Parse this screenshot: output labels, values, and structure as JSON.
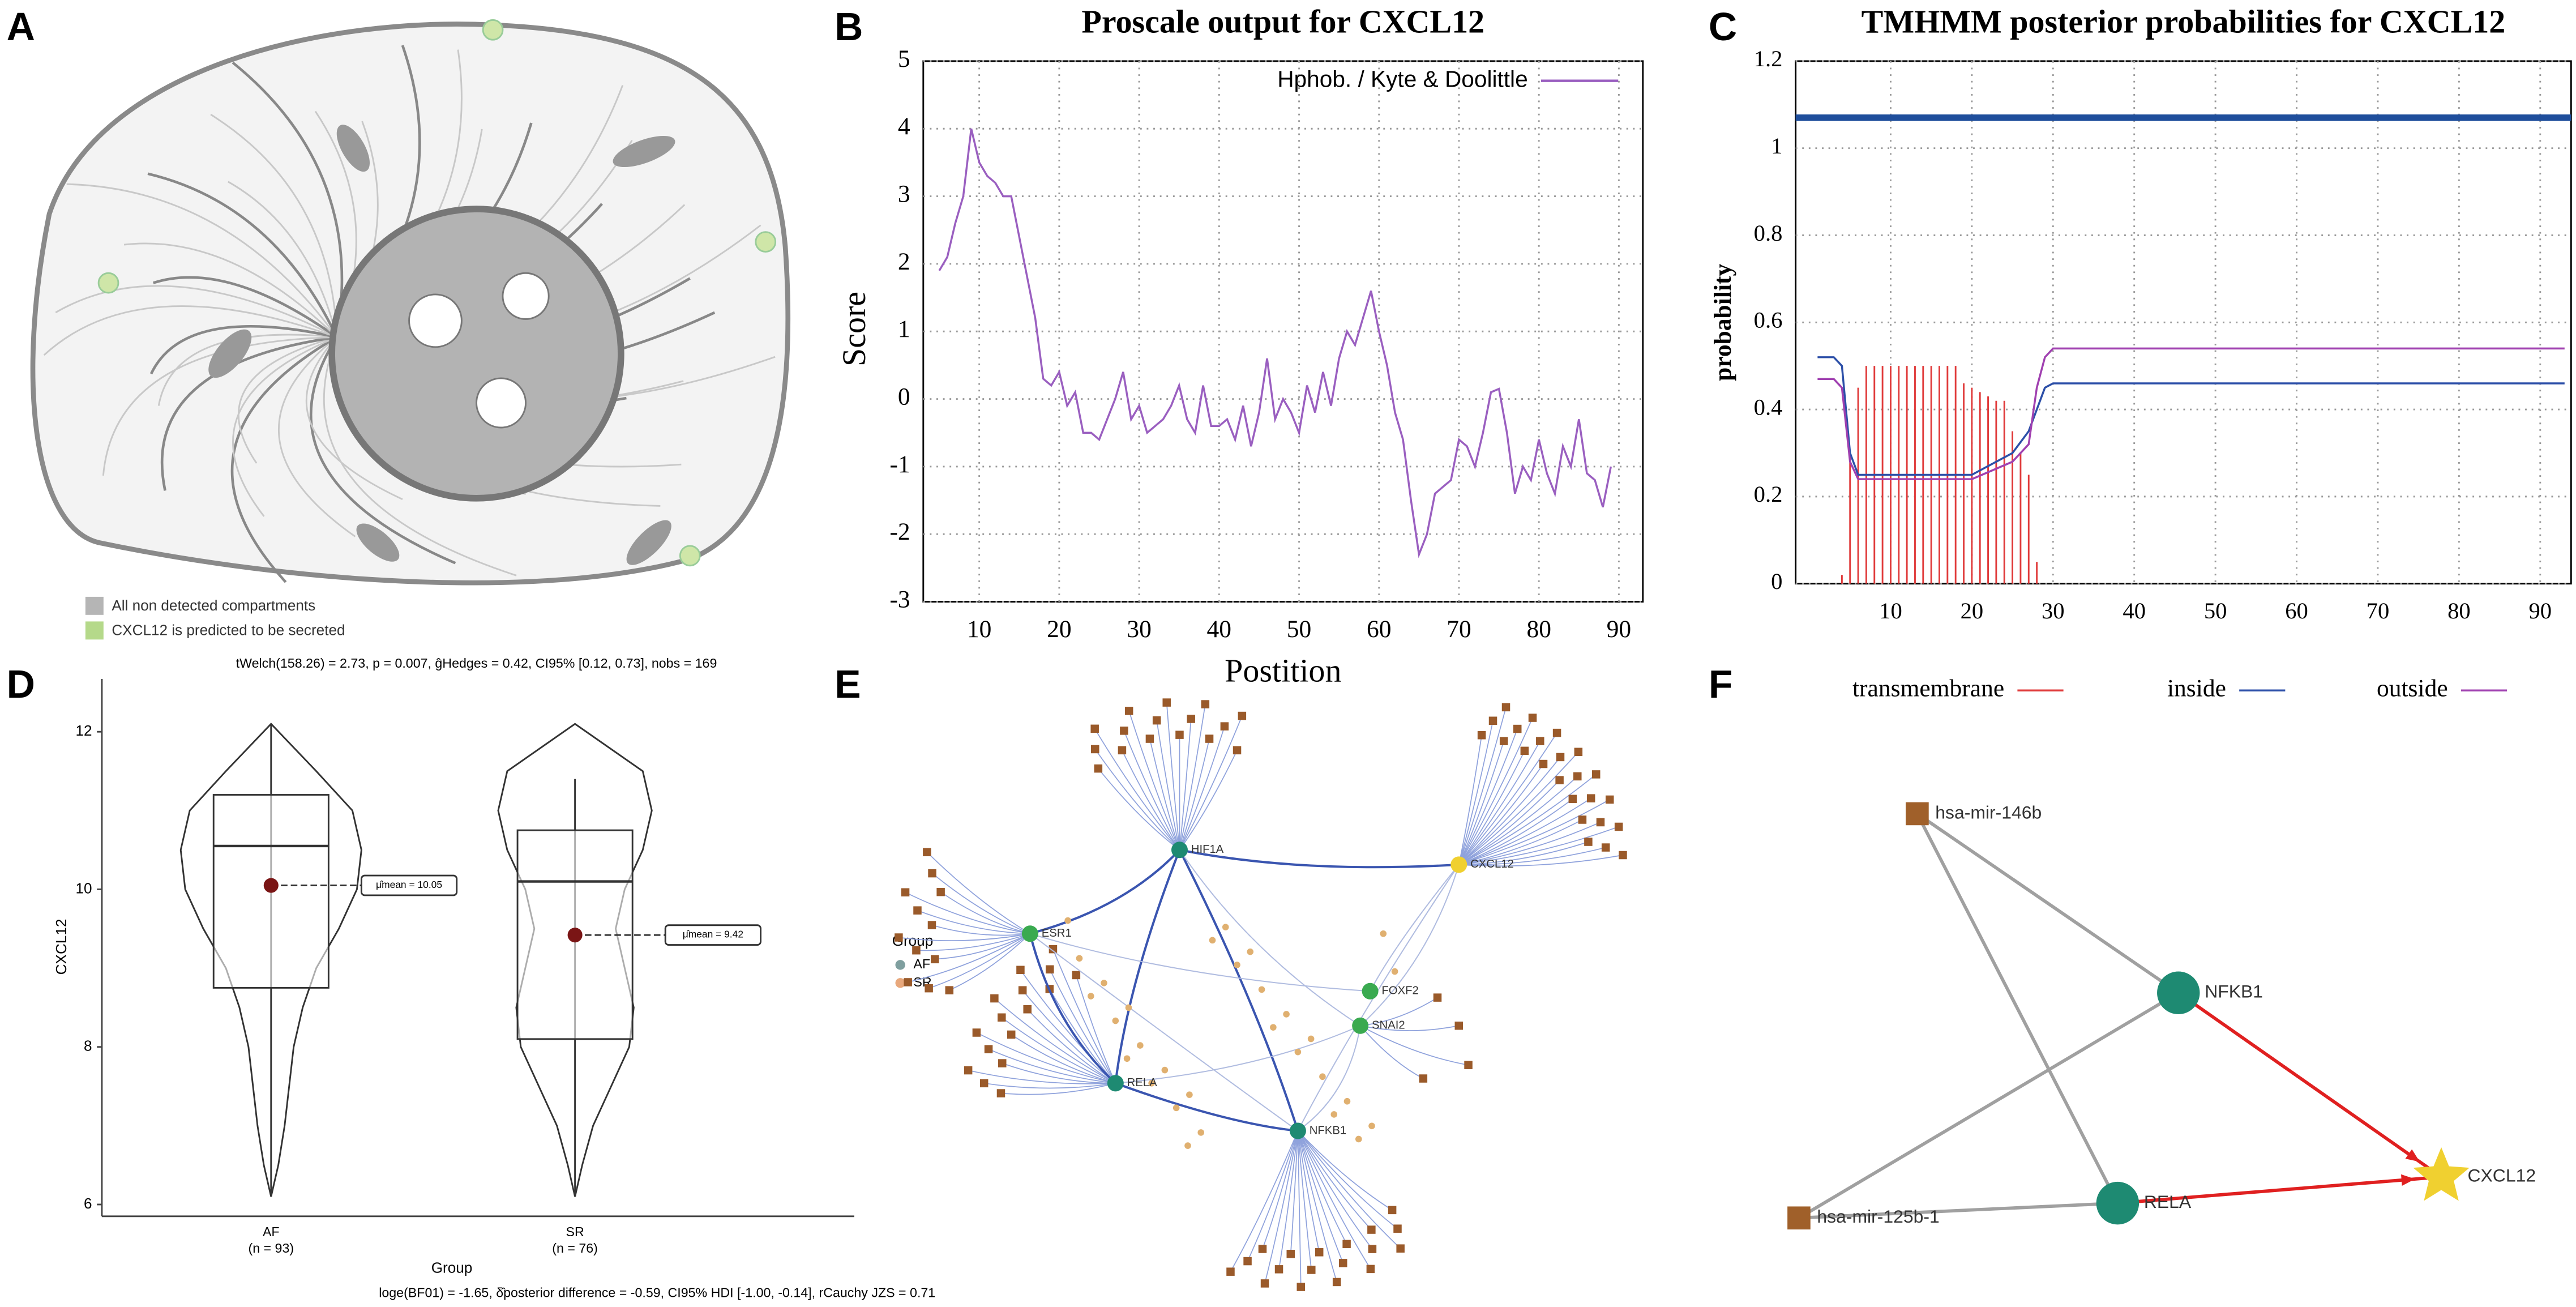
{
  "panel_labels": [
    "A",
    "B",
    "C",
    "D",
    "E",
    "F"
  ],
  "cell_legend": [
    "All non detected compartments",
    "CXCL12 is predicted to be secreted"
  ],
  "chart_data": [
    {
      "type": "line",
      "title": "Proscale output for CXCL12",
      "x_label": "Postition",
      "y_label": "Score",
      "x": [
        5,
        6,
        7,
        8,
        9,
        10,
        11,
        12,
        13,
        14,
        15,
        16,
        17,
        18,
        19,
        20,
        21,
        22,
        23,
        24,
        25,
        26,
        27,
        28,
        29,
        30,
        31,
        32,
        33,
        34,
        35,
        36,
        37,
        38,
        39,
        40,
        41,
        42,
        43,
        44,
        45,
        46,
        47,
        48,
        49,
        50,
        51,
        52,
        53,
        54,
        55,
        56,
        57,
        58,
        59,
        60,
        61,
        62,
        63,
        64,
        65,
        66,
        67,
        68,
        69,
        70,
        71,
        72,
        73,
        74,
        75,
        76,
        77,
        78,
        79,
        80,
        81,
        82,
        83,
        84,
        85,
        86,
        87,
        88,
        89
      ],
      "series": [
        {
          "name": "Hphob. / Kyte & Doolittle",
          "color": "#9a5fc0",
          "values": [
            1.9,
            2.1,
            2.6,
            3.0,
            4.0,
            3.5,
            3.3,
            3.2,
            3.0,
            3.0,
            2.4,
            1.8,
            1.2,
            0.3,
            0.2,
            0.4,
            -0.1,
            0.1,
            -0.5,
            -0.5,
            -0.6,
            -0.3,
            0.0,
            0.4,
            -0.3,
            -0.1,
            -0.5,
            -0.4,
            -0.3,
            -0.1,
            0.2,
            -0.3,
            -0.5,
            0.2,
            -0.4,
            -0.4,
            -0.3,
            -0.6,
            -0.1,
            -0.7,
            -0.2,
            0.6,
            -0.3,
            0.0,
            -0.2,
            -0.5,
            0.2,
            -0.2,
            0.4,
            -0.1,
            0.6,
            1.0,
            0.8,
            1.2,
            1.6,
            1.0,
            0.5,
            -0.2,
            -0.6,
            -1.5,
            -2.3,
            -2.0,
            -1.4,
            -1.3,
            -1.2,
            -0.6,
            -0.7,
            -1.0,
            -0.5,
            0.1,
            0.15,
            -0.5,
            -1.4,
            -1.0,
            -1.2,
            -0.6,
            -1.1,
            -1.4,
            -0.7,
            -1.0,
            -0.3,
            -1.1,
            -1.2,
            -1.6,
            -1.0
          ]
        }
      ],
      "xlim": [
        3,
        93
      ],
      "ylim": [
        -3,
        5
      ],
      "xticks": [
        10,
        20,
        30,
        40,
        50,
        60,
        70,
        80,
        90
      ],
      "yticks": [
        -3,
        -2,
        -1,
        0,
        1,
        2,
        3,
        4,
        5
      ],
      "grid": true,
      "legend": "upper right"
    },
    {
      "type": "line",
      "title": "TMHMM posterior probabilities for CXCL12",
      "y_label": "probability",
      "series": [
        {
          "name": "transmembrane",
          "color": "#e03a3a",
          "mark": "bars",
          "x": [
            4,
            5,
            6,
            7,
            8,
            9,
            10,
            11,
            12,
            13,
            14,
            15,
            16,
            17,
            18,
            19,
            20,
            21,
            22,
            23,
            24,
            25,
            26,
            27,
            28
          ],
          "values": [
            0.02,
            0.3,
            0.45,
            0.5,
            0.5,
            0.5,
            0.5,
            0.5,
            0.5,
            0.5,
            0.5,
            0.5,
            0.5,
            0.5,
            0.5,
            0.46,
            0.45,
            0.44,
            0.43,
            0.42,
            0.42,
            0.35,
            0.3,
            0.25,
            0.05
          ]
        },
        {
          "name": "inside",
          "color": "#2c4fa8",
          "mark": "line",
          "x": [
            1,
            3,
            4,
            5,
            6,
            20,
            25,
            27,
            28,
            29,
            30,
            93
          ],
          "values": [
            0.52,
            0.52,
            0.5,
            0.3,
            0.25,
            0.25,
            0.3,
            0.35,
            0.4,
            0.45,
            0.46,
            0.46
          ]
        },
        {
          "name": "outside",
          "color": "#a040b0",
          "mark": "line",
          "x": [
            1,
            3,
            4,
            5,
            6,
            20,
            25,
            27,
            28,
            29,
            30,
            93
          ],
          "values": [
            0.47,
            0.47,
            0.45,
            0.28,
            0.24,
            0.24,
            0.28,
            0.32,
            0.45,
            0.52,
            0.54,
            0.54
          ]
        }
      ],
      "topology": {
        "level": 1.07,
        "color": "#1f4e9c"
      },
      "xlim": [
        -1.7,
        93.8
      ],
      "ylim": [
        0,
        1.2
      ],
      "xticks": [
        10,
        20,
        30,
        40,
        50,
        60,
        70,
        80,
        90
      ],
      "yticks": [
        0,
        0.2,
        0.4,
        0.6,
        0.8,
        1,
        1.2
      ],
      "grid": true,
      "legend": "bottom"
    },
    {
      "type": "violin",
      "title": "tWelch(158.26) = 2.73, p = 0.007, ĝHedges = 0.42, CI95% [0.12, 0.73], nobs = 169",
      "footnote": "loge(BF01) = -1.65, δ̂posterior difference = -0.59, CI95% HDI [-1.00, -0.14], rCauchy JZS = 0.71",
      "x_label": "Group",
      "y_label": "CXCL12",
      "legend_title": "Group",
      "density_y": [
        6.1,
        6.5,
        7,
        7.5,
        8,
        8.5,
        9,
        9.5,
        10,
        10.5,
        11,
        11.5,
        12.1
      ],
      "groups": [
        {
          "name": "AF",
          "count_label": "(n = 93)",
          "color": "#7f9f9f",
          "q1": 8.75,
          "median": 10.55,
          "q3": 11.2,
          "whisker_low": 6.1,
          "whisker_high": 12.1,
          "mean": 10.05,
          "mean_label": "μ̂mean = 10.05",
          "density": [
            0,
            0.08,
            0.15,
            0.2,
            0.25,
            0.35,
            0.5,
            0.75,
            0.95,
            1.0,
            0.9,
            0.5,
            0
          ]
        },
        {
          "name": "SR",
          "count_label": "(n = 76)",
          "color": "#e8a87c",
          "q1": 8.1,
          "median": 10.1,
          "q3": 10.75,
          "whisker_low": 6.1,
          "whisker_high": 11.4,
          "mean": 9.42,
          "mean_label": "μ̂mean = 9.42",
          "density": [
            0,
            0.08,
            0.2,
            0.4,
            0.6,
            0.65,
            0.55,
            0.45,
            0.55,
            0.75,
            0.85,
            0.75,
            0
          ]
        }
      ],
      "ylim": [
        5.85,
        12.67
      ],
      "yticks": [
        6,
        8,
        10,
        12
      ]
    }
  ],
  "network_e": {
    "nodes": [
      {
        "label": "HIF1A",
        "color": "#1e8a72"
      },
      {
        "label": "CXCL12",
        "color": "#f0d030"
      },
      {
        "label": "ESR1",
        "color": "#3aaa50"
      },
      {
        "label": "FOXF2",
        "color": "#3aaa50"
      },
      {
        "label": "SNAI2",
        "color": "#3aaa50"
      },
      {
        "label": "RELA",
        "color": "#1e8a72"
      },
      {
        "label": "NFKB1",
        "color": "#1e8a72"
      }
    ]
  },
  "network_f": {
    "nodes": [
      {
        "label": "hsa-mir-146b",
        "shape": "square",
        "color": "#a0602a"
      },
      {
        "label": "NFKB1",
        "shape": "circle",
        "color": "#1e8a72"
      },
      {
        "label": "RELA",
        "shape": "circle",
        "color": "#1e8a72"
      },
      {
        "label": "CXCL12",
        "shape": "star",
        "color": "#f0d030"
      },
      {
        "label": "hsa-mir-125b-1",
        "shape": "square",
        "color": "#a0602a"
      }
    ],
    "edges": [
      {
        "from": 0,
        "to": 1,
        "color": "#a0a0a0"
      },
      {
        "from": 0,
        "to": 2,
        "color": "#a0a0a0"
      },
      {
        "from": 4,
        "to": 1,
        "color": "#a0a0a0"
      },
      {
        "from": 4,
        "to": 2,
        "color": "#a0a0a0"
      },
      {
        "from": 1,
        "to": 3,
        "color": "#e02020"
      },
      {
        "from": 2,
        "to": 3,
        "color": "#e02020"
      }
    ]
  }
}
